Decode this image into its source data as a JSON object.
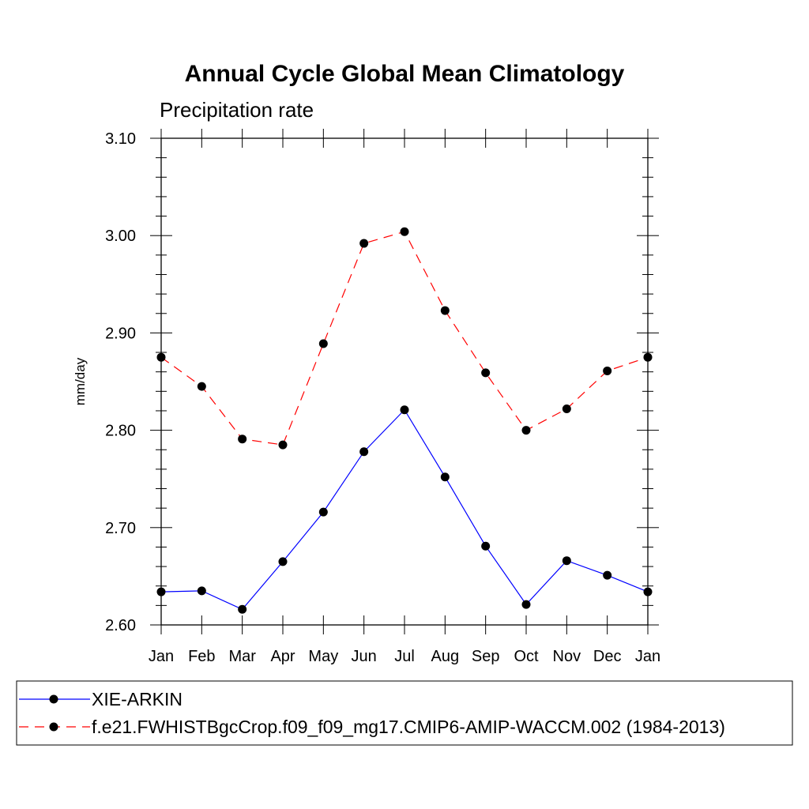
{
  "chart_data": {
    "type": "line",
    "title": "Annual Cycle Global Mean Climatology",
    "subtitle": "Precipitation rate",
    "ylabel": "mm/day",
    "ylim": [
      2.6,
      3.1
    ],
    "yticks": [
      "2.60",
      "2.70",
      "2.80",
      "2.90",
      "3.00",
      "3.10"
    ],
    "categories": [
      "Jan",
      "Feb",
      "Mar",
      "Apr",
      "May",
      "Jun",
      "Jul",
      "Aug",
      "Sep",
      "Oct",
      "Nov",
      "Dec",
      "Jan"
    ],
    "grid": false,
    "legend_position": "bottom",
    "series": [
      {
        "name": "XIE-ARKIN",
        "color": "#0000ff",
        "line_style": "solid",
        "marker": "filled-circle",
        "values": [
          2.634,
          2.635,
          2.616,
          2.665,
          2.716,
          2.778,
          2.821,
          2.752,
          2.681,
          2.621,
          2.666,
          2.651,
          2.634
        ]
      },
      {
        "name": "f.e21.FWHISTBgcCrop.f09_f09_mg17.CMIP6-AMIP-WACCM.002 (1984-2013)",
        "color": "#ff0000",
        "line_style": "dashed",
        "marker": "filled-circle",
        "values": [
          2.875,
          2.845,
          2.791,
          2.785,
          2.889,
          2.992,
          3.004,
          2.923,
          2.859,
          2.8,
          2.822,
          2.861,
          2.875
        ]
      }
    ]
  }
}
